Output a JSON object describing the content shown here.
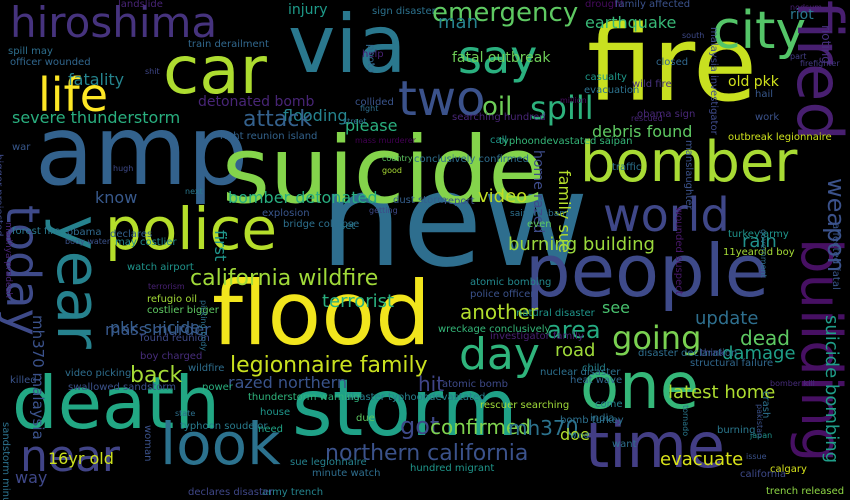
{
  "words": [
    {
      "text": "fire",
      "color": "#c8e020"
    },
    {
      "text": "new",
      "color": "#2e6e8e"
    },
    {
      "text": "amp",
      "color": "#33628d"
    },
    {
      "text": "suicide",
      "color": "#84d44b"
    },
    {
      "text": "flood",
      "color": "#f1e51d"
    },
    {
      "text": "storm",
      "color": "#1fa187"
    },
    {
      "text": "death",
      "color": "#22a884"
    },
    {
      "text": "people",
      "color": "#3e4a89"
    },
    {
      "text": "via",
      "color": "#2a788e"
    },
    {
      "text": "car",
      "color": "#addc30"
    },
    {
      "text": "police",
      "color": "#b5de2b"
    },
    {
      "text": "bomber",
      "color": "#a8db34"
    },
    {
      "text": "one",
      "color": "#35b779"
    },
    {
      "text": "time",
      "color": "#433e85"
    },
    {
      "text": "look",
      "color": "#2c728e"
    },
    {
      "text": "year",
      "color": "#26828e"
    },
    {
      "text": "hiroshima",
      "color": "#46337e"
    },
    {
      "text": "life",
      "color": "#fde725"
    },
    {
      "text": "two",
      "color": "#3b528b"
    },
    {
      "text": "city",
      "color": "#54c568"
    },
    {
      "text": "say",
      "color": "#2ab07f"
    },
    {
      "text": "world",
      "color": "#3f4788"
    },
    {
      "text": "today",
      "color": "#3e4a89"
    },
    {
      "text": "near",
      "color": "#414487"
    },
    {
      "text": "day",
      "color": "#2fb47c"
    },
    {
      "text": "fired",
      "color": "#481f70"
    },
    {
      "text": "building",
      "color": "#471063"
    },
    {
      "text": "going",
      "color": "#7ad151"
    },
    {
      "text": "spill",
      "color": "#2db27d"
    },
    {
      "text": "oil",
      "color": "#6ece58"
    },
    {
      "text": "emergency",
      "color": "#5ec962"
    },
    {
      "text": "california wildfire",
      "color": "#a0da39"
    },
    {
      "text": "legionnaire family",
      "color": "#cae11f"
    },
    {
      "text": "northern california",
      "color": "#3b528b"
    },
    {
      "text": "flooding",
      "color": "#25848e"
    },
    {
      "text": "severe thunderstorm",
      "color": "#29af7f"
    },
    {
      "text": "attack",
      "color": "#34618d"
    },
    {
      "text": "detonated bomb",
      "color": "#482576"
    },
    {
      "text": "debris found",
      "color": "#5ec962"
    },
    {
      "text": "family sue",
      "color": "#b5de2b"
    },
    {
      "text": "home razed",
      "color": "#3e4c8a"
    },
    {
      "text": "weapon",
      "color": "#3b528b"
    },
    {
      "text": "rain",
      "color": "#21918c"
    },
    {
      "text": "burning building",
      "color": "#9bd93c"
    },
    {
      "text": "bomber detonated",
      "color": "#28ae80"
    },
    {
      "text": "video",
      "color": "#c0df25"
    },
    {
      "text": "know",
      "color": "#38598c"
    },
    {
      "text": "first",
      "color": "#1f958b"
    },
    {
      "text": "terrorist",
      "color": "#2ab07f"
    },
    {
      "text": "pkk suicide",
      "color": "#355f8d"
    },
    {
      "text": "mass murder",
      "color": "#38588c"
    },
    {
      "text": "mh370 malaysia",
      "color": "#3b528b"
    },
    {
      "text": "back",
      "color": "#a5db36"
    },
    {
      "text": "area",
      "color": "#25ab82"
    },
    {
      "text": "another",
      "color": "#b2dd2d"
    },
    {
      "text": "see",
      "color": "#48c16e"
    },
    {
      "text": "update",
      "color": "#2e6f8e"
    },
    {
      "text": "dead",
      "color": "#5ec962"
    },
    {
      "text": "damage",
      "color": "#1fa088"
    },
    {
      "text": "road",
      "color": "#9fda3a"
    },
    {
      "text": "suicide bombing",
      "color": "#1f9e89"
    },
    {
      "text": "hit",
      "color": "#404588"
    },
    {
      "text": "razed northern",
      "color": "#3a548c"
    },
    {
      "text": "latest home",
      "color": "#addc30"
    },
    {
      "text": "got",
      "color": "#3e4989"
    },
    {
      "text": "confirmed",
      "color": "#7fd34e"
    },
    {
      "text": "mh370",
      "color": "#2c738e"
    },
    {
      "text": "evacuate",
      "color": "#d8e219"
    },
    {
      "text": "16yr old",
      "color": "#cde11d"
    },
    {
      "text": "way",
      "color": "#3f4889"
    },
    {
      "text": "doe",
      "color": "#b2dd2d"
    },
    {
      "text": "please",
      "color": "#2ab07f"
    },
    {
      "text": "injury",
      "color": "#1e9b8a"
    },
    {
      "text": "man",
      "color": "#26828e"
    },
    {
      "text": "earthquake",
      "color": "#38b977"
    },
    {
      "text": "old pkk",
      "color": "#d0e11c"
    },
    {
      "text": "fatality",
      "color": "#25848e"
    },
    {
      "text": "landslide",
      "color": "#482475"
    },
    {
      "text": "sign disaster",
      "color": "#2c728e"
    },
    {
      "text": "drought",
      "color": "#460b5e"
    },
    {
      "text": "family affected",
      "color": "#3b528b"
    },
    {
      "text": "fatal outbreak",
      "color": "#6ece58"
    },
    {
      "text": "train derailment",
      "color": "#31688e"
    },
    {
      "text": "casualty",
      "color": "#1f998a"
    },
    {
      "text": "evacuation",
      "color": "#2c728e"
    },
    {
      "text": "million",
      "color": "#470d60"
    },
    {
      "text": "collided",
      "color": "#3a548c"
    },
    {
      "text": "searching hundred",
      "color": "#482677"
    },
    {
      "text": "typhoondevastated saipan",
      "color": "#35b779"
    },
    {
      "text": "obama sign",
      "color": "#482878"
    },
    {
      "text": "outbreak legionnaire",
      "color": "#cde11d"
    },
    {
      "text": "right reunion island",
      "color": "#33638d"
    },
    {
      "text": "mass murderer",
      "color": "#440154"
    },
    {
      "text": "conclusively confirmed",
      "color": "#2e6e8e"
    },
    {
      "text": "hail",
      "color": "#38588c"
    },
    {
      "text": "work",
      "color": "#3b528b"
    },
    {
      "text": "riot",
      "color": "#2a788e"
    },
    {
      "text": "nodsum",
      "color": "#482173"
    },
    {
      "text": "rioting",
      "color": "#46307e"
    },
    {
      "text": "part",
      "color": "#433e85"
    },
    {
      "text": "firefighter",
      "color": "#443a83"
    },
    {
      "text": "malaysia investigator",
      "color": "#3e4a89"
    },
    {
      "text": "manslaughter",
      "color": "#3b528b"
    },
    {
      "text": "spill may",
      "color": "#2e6f8e"
    },
    {
      "text": "officer wounded",
      "color": "#31678e"
    },
    {
      "text": "bigger projected",
      "color": "#3e4a89"
    },
    {
      "text": "war",
      "color": "#38588c"
    },
    {
      "text": "madhya pradesh",
      "color": "#482576"
    },
    {
      "text": "forest fire",
      "color": "#2a788e"
    },
    {
      "text": "obama",
      "color": "#30698e"
    },
    {
      "text": "declares",
      "color": "#34618d"
    },
    {
      "text": "may costlier",
      "color": "#23898e"
    },
    {
      "text": "explosion",
      "color": "#39568c"
    },
    {
      "text": "bridge collapse",
      "color": "#2d708e"
    },
    {
      "text": "watch airport",
      "color": "#1f948c"
    },
    {
      "text": "refugio oil",
      "color": "#a2da37"
    },
    {
      "text": "costlier bigger",
      "color": "#5ec962"
    },
    {
      "text": "found reunion",
      "color": "#3e4a89"
    },
    {
      "text": "boy charged",
      "color": "#472d7b"
    },
    {
      "text": "swallowed sandstorm",
      "color": "#3b528b"
    },
    {
      "text": "power",
      "color": "#2ab07f"
    },
    {
      "text": "atomic bomb",
      "color": "#3e4a89"
    },
    {
      "text": "heat wave",
      "color": "#31678e"
    },
    {
      "text": "disaster typhoondevastated",
      "color": "#277f8e"
    },
    {
      "text": "thunderstorm warning",
      "color": "#2fb47c"
    },
    {
      "text": "sue legionnaire",
      "color": "#26828e"
    },
    {
      "text": "minute watch",
      "color": "#2e6e8e"
    },
    {
      "text": "hundred migrant",
      "color": "#1f968b"
    },
    {
      "text": "army trench",
      "color": "#25848e"
    },
    {
      "text": "declares disaster",
      "color": "#3f4788"
    },
    {
      "text": "typhoon soudelor",
      "color": "#287c8e"
    },
    {
      "text": "rescuer searching",
      "color": "#a0da39"
    },
    {
      "text": "bomb turkey",
      "color": "#2d708e"
    },
    {
      "text": "wreckage conclusively",
      "color": "#35b779"
    },
    {
      "text": "investigator family",
      "color": "#482173"
    },
    {
      "text": "police officer",
      "color": "#3b528b"
    },
    {
      "text": "atomic bombing",
      "color": "#23898e"
    },
    {
      "text": "natural disaster",
      "color": "#1f968b"
    },
    {
      "text": "disaster declaration",
      "color": "#2e6e8e"
    },
    {
      "text": "nuclear disaster",
      "color": "#2d708e"
    },
    {
      "text": "structural failure",
      "color": "#31688e"
    },
    {
      "text": "turkey army",
      "color": "#1f948c"
    },
    {
      "text": "11yearold boy",
      "color": "#a5db36"
    },
    {
      "text": "affected fatal",
      "color": "#39568c"
    },
    {
      "text": "trench released",
      "color": "#8ed645"
    },
    {
      "text": "calgary",
      "color": "#d5e21a"
    },
    {
      "text": "japan",
      "color": "#20928c"
    },
    {
      "text": "issue",
      "color": "#3b528b"
    },
    {
      "text": "california",
      "color": "#3e4a89"
    },
    {
      "text": "bomber kill",
      "color": "#472c7a"
    },
    {
      "text": "crash",
      "color": "#2c728e"
    },
    {
      "text": "wounded suspect",
      "color": "#48186a"
    },
    {
      "text": "government",
      "color": "#2e6e8e"
    },
    {
      "text": "want",
      "color": "#2e6f8e"
    },
    {
      "text": "burning",
      "color": "#2a788e"
    },
    {
      "text": "think",
      "color": "#3f4788"
    },
    {
      "text": "come",
      "color": "#26828e"
    },
    {
      "text": "india",
      "color": "#2c728e"
    },
    {
      "text": "child",
      "color": "#26828e"
    },
    {
      "text": "wildfire",
      "color": "#2e6e8e"
    },
    {
      "text": "killed",
      "color": "#3a548c"
    },
    {
      "text": "video picking",
      "color": "#2e6e8e"
    },
    {
      "text": "woman",
      "color": "#3b528b"
    },
    {
      "text": "house",
      "color": "#1f968b"
    },
    {
      "text": "need",
      "color": "#20a486"
    },
    {
      "text": "due",
      "color": "#5ec962"
    },
    {
      "text": "wind",
      "color": "#2a788e"
    },
    {
      "text": "state",
      "color": "#2d708e"
    },
    {
      "text": "sandstorm minute",
      "color": "#2c728e"
    },
    {
      "text": "fight",
      "color": "#2e6e8e"
    },
    {
      "text": "help",
      "color": "#482173"
    },
    {
      "text": "photo",
      "color": "#30698e"
    },
    {
      "text": "street",
      "color": "#2e6e8e"
    },
    {
      "text": "call",
      "color": "#1f988b"
    },
    {
      "text": "closed",
      "color": "#31688e"
    },
    {
      "text": "south",
      "color": "#3e4a89"
    },
    {
      "text": "wild fire",
      "color": "#46327e"
    },
    {
      "text": "rescued",
      "color": "#482576"
    },
    {
      "text": "traffic",
      "color": "#2c728e"
    },
    {
      "text": "even",
      "color": "#5ec962"
    },
    {
      "text": "saipan obama",
      "color": "#2d708e"
    },
    {
      "text": "dust storm",
      "color": "#355f8d"
    },
    {
      "text": "report",
      "color": "#3b528b"
    },
    {
      "text": "getting",
      "color": "#3e4a89"
    },
    {
      "text": "set",
      "color": "#2a788e"
    },
    {
      "text": "body water",
      "color": "#3b528b"
    },
    {
      "text": "terrorism",
      "color": "#482173"
    },
    {
      "text": "hugh",
      "color": "#3e4a89"
    },
    {
      "text": "country",
      "color": "#5ec962"
    },
    {
      "text": "good",
      "color": "#a8db34"
    },
    {
      "text": "next",
      "color": "#2a788e"
    },
    {
      "text": "shit",
      "color": "#3f4788"
    },
    {
      "text": "tornado",
      "color": "#2a788e"
    },
    {
      "text": "picking body",
      "color": "#2d708e"
    },
    {
      "text": "pakistan",
      "color": "#3b528b"
    }
  ]
}
